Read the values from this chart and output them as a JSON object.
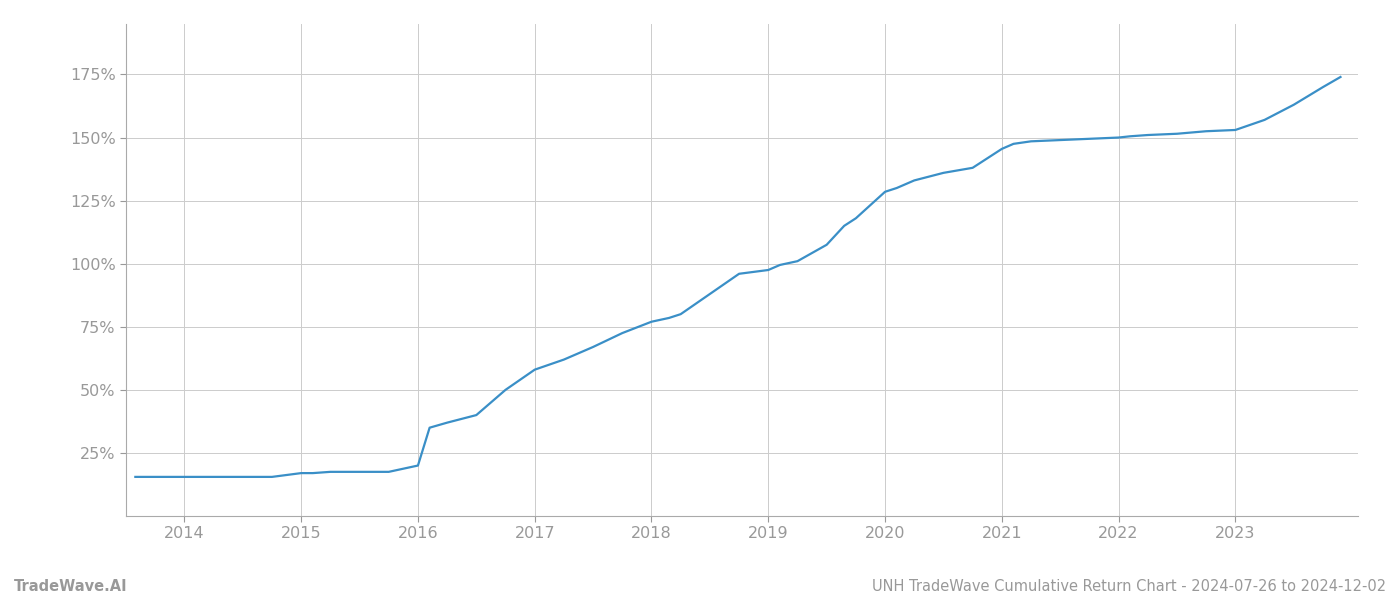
{
  "title": "UNH TradeWave Cumulative Return Chart - 2024-07-26 to 2024-12-02",
  "watermark": "TradeWave.AI",
  "line_color": "#3a8fc7",
  "background_color": "#ffffff",
  "grid_color": "#cccccc",
  "x_values": [
    2013.58,
    2013.75,
    2014.0,
    2014.25,
    2014.5,
    2014.75,
    2015.0,
    2015.1,
    2015.25,
    2015.5,
    2015.75,
    2016.0,
    2016.1,
    2016.25,
    2016.5,
    2016.75,
    2017.0,
    2017.25,
    2017.5,
    2017.75,
    2018.0,
    2018.15,
    2018.25,
    2018.5,
    2018.75,
    2019.0,
    2019.1,
    2019.25,
    2019.5,
    2019.65,
    2019.75,
    2020.0,
    2020.1,
    2020.25,
    2020.5,
    2020.75,
    2021.0,
    2021.1,
    2021.25,
    2021.5,
    2021.75,
    2022.0,
    2022.1,
    2022.25,
    2022.5,
    2022.75,
    2023.0,
    2023.25,
    2023.5,
    2023.75,
    2023.9
  ],
  "y_values": [
    15.5,
    15.5,
    15.5,
    15.5,
    15.5,
    15.5,
    17.0,
    17.0,
    17.5,
    17.5,
    17.5,
    20.0,
    35.0,
    37.0,
    40.0,
    50.0,
    58.0,
    62.0,
    67.0,
    72.5,
    77.0,
    78.5,
    80.0,
    88.0,
    96.0,
    97.5,
    99.5,
    101.0,
    107.5,
    115.0,
    118.0,
    128.5,
    130.0,
    133.0,
    136.0,
    138.0,
    145.5,
    147.5,
    148.5,
    149.0,
    149.5,
    150.0,
    150.5,
    151.0,
    151.5,
    152.5,
    153.0,
    157.0,
    163.0,
    170.0,
    174.0
  ],
  "xlim": [
    2013.5,
    2024.05
  ],
  "ylim": [
    0,
    195
  ],
  "yticks": [
    25,
    50,
    75,
    100,
    125,
    150,
    175
  ],
  "xticks": [
    2014,
    2015,
    2016,
    2017,
    2018,
    2019,
    2020,
    2021,
    2022,
    2023
  ],
  "line_width": 1.6,
  "tick_label_color": "#999999",
  "title_color": "#999999",
  "watermark_color": "#999999",
  "title_fontsize": 10.5,
  "watermark_fontsize": 10.5,
  "tick_fontsize": 11.5
}
